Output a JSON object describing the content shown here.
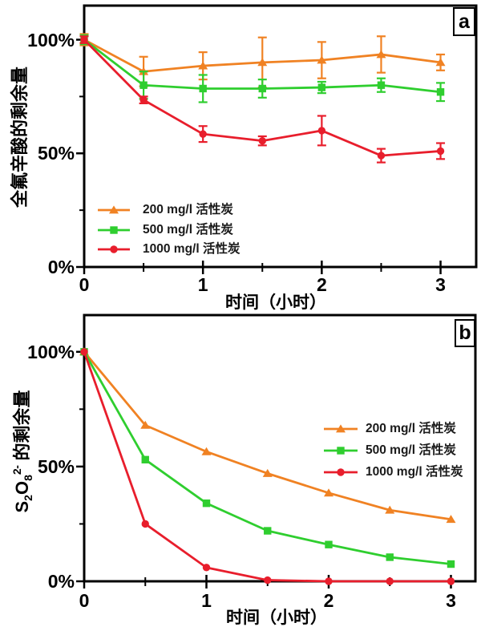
{
  "page": {
    "background": "#ffffff",
    "axis_color": "#000000"
  },
  "series_colors": {
    "c200": "#F08223",
    "c500": "#2FCE2F",
    "c1000": "#E81E2C"
  },
  "chart_data": [
    {
      "panel": "a",
      "type": "line",
      "title": "",
      "xlabel": "时间（小时）",
      "ylabel": "全氟辛酸的剩余量",
      "x": [
        0,
        0.5,
        1,
        1.5,
        2,
        2.5,
        3
      ],
      "xlim": [
        0,
        3.3
      ],
      "ylim": [
        0,
        115
      ],
      "xticks_major": [
        0,
        1,
        2,
        3
      ],
      "xtick_labels": [
        "0",
        "1",
        "2",
        "3"
      ],
      "xticks_minor": [
        0.5,
        1.5,
        2.5
      ],
      "yticks_major": [
        0,
        50,
        100
      ],
      "ytick_labels": [
        "0%",
        "50%",
        "100%"
      ],
      "yticks_minor": [
        25,
        75
      ],
      "grid": false,
      "error_bars": true,
      "legend_position": "lower-left",
      "series": [
        {
          "name": "200 mg/l 活性炭",
          "color": "#F08223",
          "marker": "triangle",
          "values": [
            100,
            86,
            88.5,
            90,
            91,
            93.5,
            90
          ],
          "errors": [
            2.5,
            6.5,
            6,
            11,
            8,
            8,
            3.5
          ]
        },
        {
          "name": "500 mg/l 活性炭",
          "color": "#2FCE2F",
          "marker": "square",
          "values": [
            100,
            80,
            78.5,
            78.5,
            79,
            80,
            77
          ],
          "errors": [
            2,
            6,
            6,
            4,
            2.5,
            3,
            4
          ]
        },
        {
          "name": "1000 mg/l 活性炭",
          "color": "#E81E2C",
          "marker": "circle",
          "values": [
            100,
            73.5,
            58.5,
            55.5,
            60,
            49,
            51
          ],
          "errors": [
            1.5,
            1.5,
            3.5,
            2,
            6.5,
            3,
            3.5
          ]
        }
      ]
    },
    {
      "panel": "b",
      "type": "line",
      "title": "",
      "xlabel": "时间（小时）",
      "ylabel": "S2O8 2- 的剩余量",
      "ylabel_parts": {
        "base1": "S",
        "sub1": "2",
        "base2": "O",
        "sub2": "8",
        "sup": "2-",
        "suffix": " 的剩余量"
      },
      "x": [
        0,
        0.5,
        1,
        1.5,
        2,
        2.5,
        3
      ],
      "xlim": [
        0,
        3.2
      ],
      "ylim": [
        0,
        116
      ],
      "xticks_major": [
        0,
        1,
        2,
        3
      ],
      "xtick_labels": [
        "0",
        "1",
        "2",
        "3"
      ],
      "xticks_minor": [
        0.5,
        1.5,
        2.5
      ],
      "yticks_major": [
        0,
        50,
        100
      ],
      "ytick_labels": [
        "0%",
        "50%",
        "100%"
      ],
      "yticks_minor": [
        25,
        75
      ],
      "grid": false,
      "error_bars": false,
      "legend_position": "middle-right",
      "series": [
        {
          "name": "200 mg/l 活性炭",
          "color": "#F08223",
          "marker": "triangle",
          "values": [
            100,
            68,
            56.5,
            47,
            38.5,
            31,
            27
          ]
        },
        {
          "name": "500 mg/l 活性炭",
          "color": "#2FCE2F",
          "marker": "square",
          "values": [
            100,
            53,
            34,
            22,
            16,
            10.5,
            7.5
          ]
        },
        {
          "name": "1000 mg/l 活性炭",
          "color": "#E81E2C",
          "marker": "circle",
          "values": [
            100,
            25,
            6,
            0.5,
            0,
            0,
            0
          ]
        }
      ]
    }
  ]
}
